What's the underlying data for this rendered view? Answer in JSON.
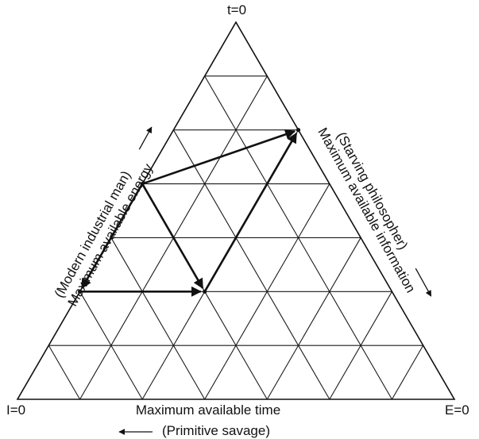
{
  "vertex_labels": {
    "top": "t=0",
    "left": "I=0",
    "right": "E=0"
  },
  "side_labels": {
    "left_line1": "(Modern industrial man)",
    "left_line2": "Maximum available energy",
    "right_line1": "(Starving philosopher)",
    "right_line2": "Maximum available information",
    "bottom_line1": "Maximum available time",
    "bottom_line2": "(Primitive savage)"
  },
  "colors": {
    "ink": "#111111",
    "background": "#ffffff"
  },
  "grid": {
    "divisions": 7
  },
  "path": {
    "description_nodes": "barycentric lattice points (i from bottom, j from left) ",
    "nodes": [
      {
        "i": 4,
        "j": 0
      },
      {
        "i": 2,
        "j": 2
      },
      {
        "i": 5,
        "j": 2
      },
      {
        "i": 2,
        "j": 0
      }
    ],
    "edges": [
      [
        0,
        1
      ],
      [
        0,
        2
      ],
      [
        0,
        3
      ],
      [
        3,
        1
      ],
      [
        1,
        2
      ]
    ]
  }
}
